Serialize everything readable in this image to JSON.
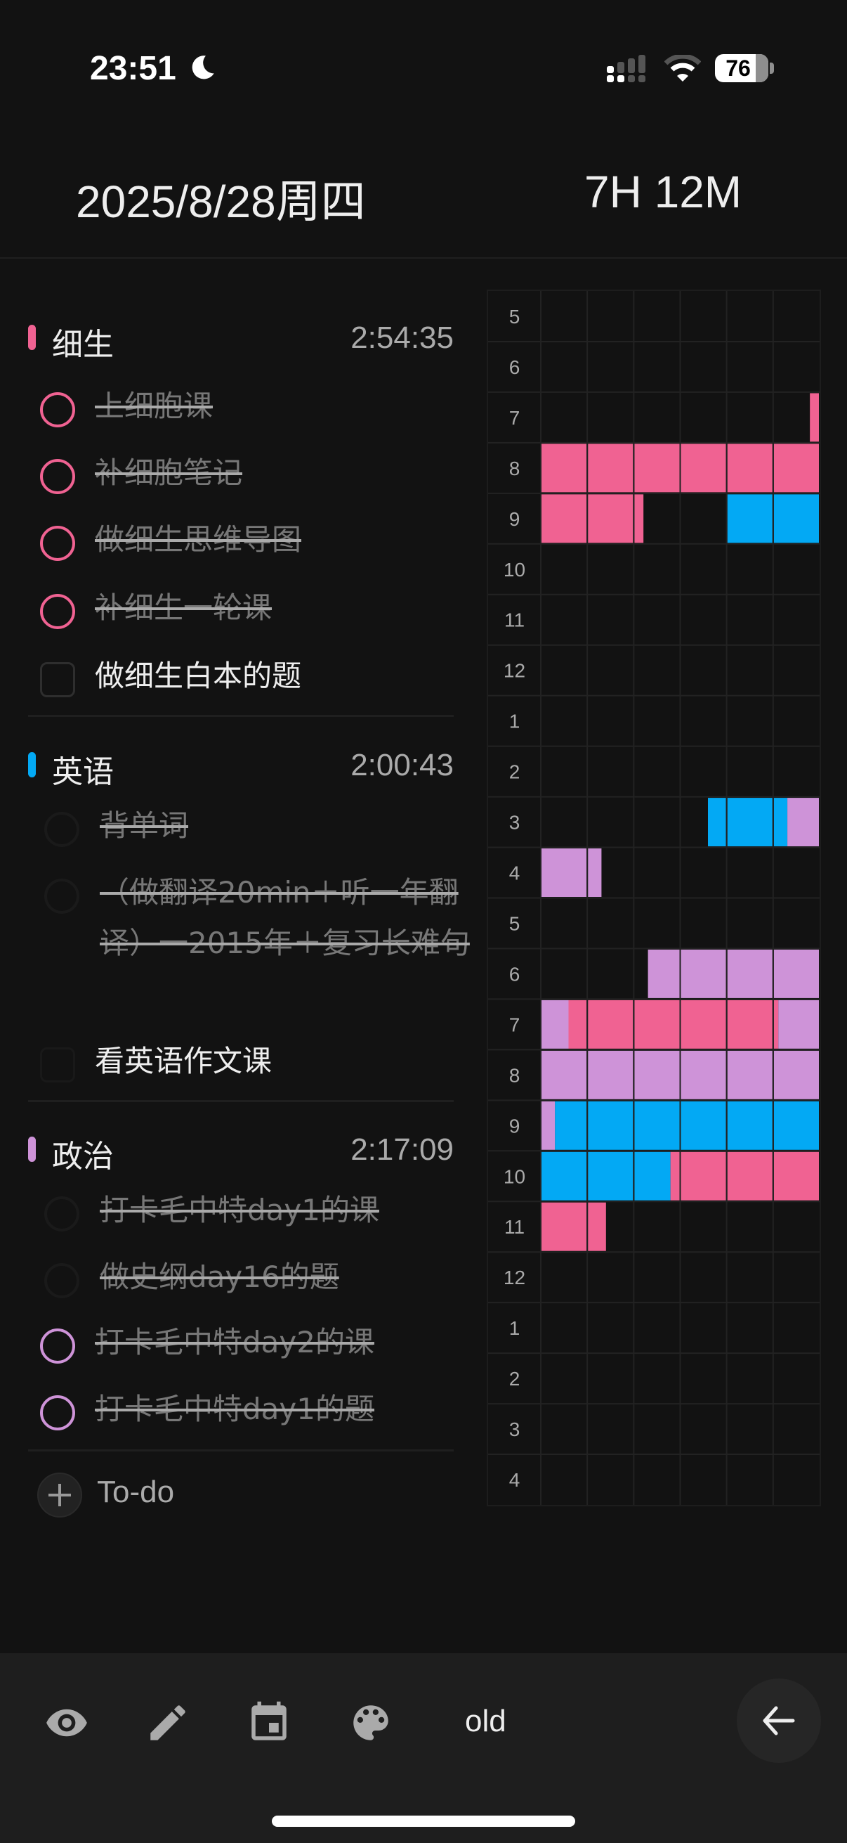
{
  "status_bar": {
    "time": "23:51",
    "battery": "76",
    "battery_percent": 76,
    "icons": [
      "moon-icon",
      "signal-icon",
      "wifi-icon",
      "battery-icon"
    ]
  },
  "header": {
    "date": "2025/8/28周四",
    "total": "7H 12M"
  },
  "colors": {
    "pink": "#f06292",
    "blue": "#03a9f4",
    "purple": "#ce93d8",
    "background": "#121212"
  },
  "sections": [
    {
      "name": "细生",
      "time": "2:54:35",
      "color": "pink",
      "tasks": [
        {
          "text": "上细胞课",
          "status": "done"
        },
        {
          "text": "补细胞笔记",
          "status": "done"
        },
        {
          "text": "做细生思维导图",
          "status": "done"
        },
        {
          "text": "补细生一轮课",
          "status": "done"
        },
        {
          "text": "做细生白本的题",
          "status": "open"
        }
      ]
    },
    {
      "name": "英语",
      "time": "2:00:43",
      "color": "blue",
      "tasks": [
        {
          "text": "背单词",
          "status": "done-dark"
        },
        {
          "text": "（做翻译20min＋听一年翻译）一2015年＋复习长难句",
          "status": "done-dark"
        },
        {
          "text": "看英语作文课",
          "status": "open-dark"
        }
      ]
    },
    {
      "name": "政治",
      "time": "2:17:09",
      "color": "purple",
      "tasks": [
        {
          "text": "打卡毛中特day1的课",
          "status": "done-dark"
        },
        {
          "text": "做史纲day16的题",
          "status": "done-dark"
        },
        {
          "text": "打卡毛中特day2的课",
          "status": "done"
        },
        {
          "text": "打卡毛中特day1的题",
          "status": "done"
        }
      ]
    }
  ],
  "add_todo": {
    "label": "To-do"
  },
  "timeline": {
    "columns_per_hour": 6,
    "rows": [
      {
        "label": "5",
        "segments": []
      },
      {
        "label": "6",
        "segments": []
      },
      {
        "label": "7",
        "segments": [
          [
            58,
            60,
            "pink"
          ]
        ]
      },
      {
        "label": "8",
        "segments": [
          [
            0,
            60,
            "pink"
          ]
        ]
      },
      {
        "label": "9",
        "segments": [
          [
            0,
            22,
            "pink"
          ],
          [
            40,
            60,
            "blue"
          ]
        ]
      },
      {
        "label": "10",
        "segments": []
      },
      {
        "label": "11",
        "segments": []
      },
      {
        "label": "12",
        "segments": []
      },
      {
        "label": "1",
        "segments": []
      },
      {
        "label": "2",
        "segments": []
      },
      {
        "label": "3",
        "segments": [
          [
            36,
            53,
            "blue"
          ],
          [
            53,
            60,
            "purple"
          ]
        ]
      },
      {
        "label": "4",
        "segments": [
          [
            0,
            13,
            "purple"
          ]
        ]
      },
      {
        "label": "5",
        "segments": []
      },
      {
        "label": "6",
        "segments": [
          [
            23,
            60,
            "purple"
          ]
        ]
      },
      {
        "label": "7",
        "segments": [
          [
            0,
            6,
            "purple"
          ],
          [
            6,
            51,
            "pink"
          ],
          [
            51,
            60,
            "purple"
          ]
        ]
      },
      {
        "label": "8",
        "segments": [
          [
            0,
            60,
            "purple"
          ]
        ]
      },
      {
        "label": "9",
        "segments": [
          [
            0,
            3,
            "purple"
          ],
          [
            3,
            60,
            "blue"
          ]
        ]
      },
      {
        "label": "10",
        "segments": [
          [
            0,
            28,
            "blue"
          ],
          [
            28,
            60,
            "pink"
          ]
        ]
      },
      {
        "label": "11",
        "segments": [
          [
            0,
            14,
            "pink"
          ]
        ]
      },
      {
        "label": "12",
        "segments": []
      },
      {
        "label": "1",
        "segments": []
      },
      {
        "label": "2",
        "segments": []
      },
      {
        "label": "3",
        "segments": []
      },
      {
        "label": "4",
        "segments": []
      }
    ]
  },
  "toolbar": {
    "items": [
      "eye-icon",
      "pencil-icon",
      "calendar-icon",
      "palette-icon"
    ],
    "old_label": "old",
    "back": "arrow-left-icon"
  }
}
